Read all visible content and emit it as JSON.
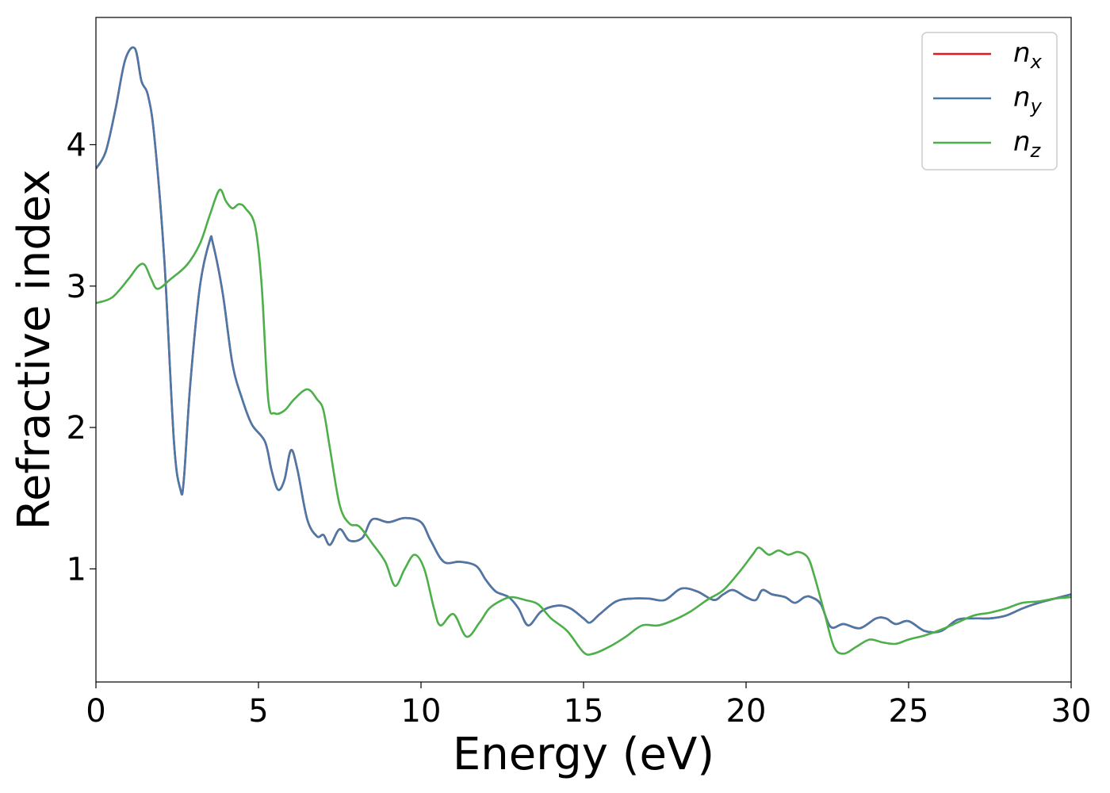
{
  "chart_data": {
    "type": "line",
    "xlabel": "Energy (eV)",
    "ylabel": "Refractive index",
    "xlim": [
      0,
      30
    ],
    "ylim": [
      0.2,
      4.9
    ],
    "xticks": [
      0,
      5,
      10,
      15,
      20,
      25,
      30
    ],
    "xtick_labels": [
      "0",
      "5",
      "10",
      "15",
      "20",
      "25",
      "30"
    ],
    "yticks": [
      1,
      2,
      3,
      4
    ],
    "ytick_labels": [
      "1",
      "2",
      "3",
      "4"
    ],
    "grid": false,
    "legend_position": "top-right",
    "series": [
      {
        "name": "n",
        "subscript": "x",
        "color": "#e41a1c",
        "x": [
          0,
          0.3,
          0.6,
          0.9,
          1.2,
          1.4,
          1.6,
          1.8,
          2.1,
          2.4,
          2.6,
          2.7,
          2.9,
          3.2,
          3.5,
          3.6,
          3.9,
          4.2,
          4.5,
          4.8,
          5.2,
          5.4,
          5.6,
          5.8,
          6.0,
          6.2,
          6.5,
          6.8,
          7.0,
          7.2,
          7.5,
          7.8,
          8.2,
          8.5,
          9.0,
          9.5,
          10.0,
          10.3,
          10.7,
          11.2,
          11.7,
          12.0,
          12.3,
          12.7,
          13.0,
          13.3,
          13.7,
          14.2,
          14.6,
          15.0,
          15.2,
          15.5,
          16.0,
          16.5,
          17.0,
          17.5,
          18.0,
          18.5,
          19.0,
          19.3,
          19.6,
          20.0,
          20.3,
          20.5,
          20.8,
          21.2,
          21.5,
          21.8,
          22.0,
          22.3,
          22.6,
          23.0,
          23.5,
          24.0,
          24.3,
          24.6,
          25.0,
          25.5,
          26.0,
          26.5,
          27.0,
          27.5,
          28.0,
          28.5,
          29.0,
          29.5,
          30.0
        ],
        "y": [
          3.83,
          3.95,
          4.25,
          4.6,
          4.68,
          4.45,
          4.35,
          4.05,
          3.2,
          1.9,
          1.56,
          1.62,
          2.3,
          3.0,
          3.32,
          3.3,
          2.95,
          2.45,
          2.2,
          2.02,
          1.9,
          1.7,
          1.56,
          1.63,
          1.84,
          1.7,
          1.35,
          1.23,
          1.24,
          1.17,
          1.28,
          1.2,
          1.22,
          1.35,
          1.33,
          1.36,
          1.33,
          1.2,
          1.05,
          1.05,
          1.02,
          0.92,
          0.84,
          0.8,
          0.72,
          0.6,
          0.7,
          0.74,
          0.72,
          0.65,
          0.62,
          0.68,
          0.77,
          0.79,
          0.79,
          0.78,
          0.86,
          0.84,
          0.78,
          0.82,
          0.85,
          0.8,
          0.78,
          0.85,
          0.82,
          0.8,
          0.76,
          0.8,
          0.8,
          0.75,
          0.59,
          0.61,
          0.58,
          0.65,
          0.65,
          0.61,
          0.63,
          0.56,
          0.56,
          0.64,
          0.65,
          0.65,
          0.67,
          0.72,
          0.76,
          0.79,
          0.82
        ]
      },
      {
        "name": "n",
        "subscript": "y",
        "color": "#4a78a8",
        "x": [
          0,
          0.3,
          0.6,
          0.9,
          1.2,
          1.4,
          1.6,
          1.8,
          2.1,
          2.4,
          2.6,
          2.7,
          2.9,
          3.2,
          3.5,
          3.6,
          3.9,
          4.2,
          4.5,
          4.8,
          5.2,
          5.4,
          5.6,
          5.8,
          6.0,
          6.2,
          6.5,
          6.8,
          7.0,
          7.2,
          7.5,
          7.8,
          8.2,
          8.5,
          9.0,
          9.5,
          10.0,
          10.3,
          10.7,
          11.2,
          11.7,
          12.0,
          12.3,
          12.7,
          13.0,
          13.3,
          13.7,
          14.2,
          14.6,
          15.0,
          15.2,
          15.5,
          16.0,
          16.5,
          17.0,
          17.5,
          18.0,
          18.5,
          19.0,
          19.3,
          19.6,
          20.0,
          20.3,
          20.5,
          20.8,
          21.2,
          21.5,
          21.8,
          22.0,
          22.3,
          22.6,
          23.0,
          23.5,
          24.0,
          24.3,
          24.6,
          25.0,
          25.5,
          26.0,
          26.5,
          27.0,
          27.5,
          28.0,
          28.5,
          29.0,
          29.5,
          30.0
        ],
        "y": [
          3.83,
          3.95,
          4.25,
          4.6,
          4.68,
          4.45,
          4.35,
          4.05,
          3.2,
          1.9,
          1.56,
          1.62,
          2.3,
          3.0,
          3.32,
          3.3,
          2.95,
          2.45,
          2.2,
          2.02,
          1.9,
          1.7,
          1.56,
          1.63,
          1.84,
          1.7,
          1.35,
          1.23,
          1.24,
          1.17,
          1.28,
          1.2,
          1.22,
          1.35,
          1.33,
          1.36,
          1.33,
          1.2,
          1.05,
          1.05,
          1.02,
          0.92,
          0.84,
          0.8,
          0.72,
          0.6,
          0.7,
          0.74,
          0.72,
          0.65,
          0.62,
          0.68,
          0.77,
          0.79,
          0.79,
          0.78,
          0.86,
          0.84,
          0.78,
          0.82,
          0.85,
          0.8,
          0.78,
          0.85,
          0.82,
          0.8,
          0.76,
          0.8,
          0.8,
          0.75,
          0.59,
          0.61,
          0.58,
          0.65,
          0.65,
          0.61,
          0.63,
          0.56,
          0.56,
          0.64,
          0.65,
          0.65,
          0.67,
          0.72,
          0.76,
          0.79,
          0.82
        ]
      },
      {
        "name": "n",
        "subscript": "z",
        "color": "#4daf4a",
        "x": [
          0,
          0.5,
          1.0,
          1.3,
          1.5,
          1.7,
          1.9,
          2.3,
          2.8,
          3.2,
          3.5,
          3.8,
          4.0,
          4.2,
          4.4,
          4.6,
          4.9,
          5.1,
          5.3,
          5.5,
          5.8,
          6.1,
          6.5,
          6.8,
          7.0,
          7.2,
          7.5,
          7.8,
          8.1,
          8.5,
          8.9,
          9.2,
          9.5,
          9.8,
          10.1,
          10.4,
          10.6,
          11.0,
          11.4,
          11.8,
          12.1,
          12.5,
          12.8,
          13.2,
          13.6,
          14.0,
          14.5,
          15.0,
          15.3,
          15.8,
          16.3,
          16.8,
          17.3,
          17.8,
          18.3,
          18.8,
          19.3,
          19.8,
          20.2,
          20.4,
          20.7,
          21.0,
          21.3,
          21.6,
          21.9,
          22.1,
          22.4,
          22.7,
          23.0,
          23.4,
          23.8,
          24.2,
          24.6,
          25.0,
          25.5,
          26.0,
          26.5,
          27.0,
          27.5,
          28.0,
          28.5,
          29.0,
          29.5,
          30.0
        ],
        "y": [
          2.88,
          2.92,
          3.05,
          3.14,
          3.15,
          3.05,
          2.98,
          3.05,
          3.15,
          3.3,
          3.5,
          3.68,
          3.6,
          3.55,
          3.58,
          3.55,
          3.42,
          3.0,
          2.2,
          2.1,
          2.12,
          2.2,
          2.27,
          2.2,
          2.12,
          1.85,
          1.45,
          1.32,
          1.3,
          1.18,
          1.05,
          0.88,
          1.0,
          1.1,
          1.0,
          0.72,
          0.6,
          0.68,
          0.52,
          0.62,
          0.72,
          0.78,
          0.8,
          0.78,
          0.75,
          0.65,
          0.56,
          0.41,
          0.4,
          0.45,
          0.52,
          0.6,
          0.6,
          0.64,
          0.7,
          0.78,
          0.85,
          0.98,
          1.1,
          1.15,
          1.1,
          1.13,
          1.1,
          1.12,
          1.08,
          0.95,
          0.7,
          0.45,
          0.4,
          0.45,
          0.5,
          0.48,
          0.47,
          0.5,
          0.53,
          0.57,
          0.62,
          0.67,
          0.69,
          0.72,
          0.76,
          0.77,
          0.79,
          0.8
        ]
      }
    ]
  }
}
